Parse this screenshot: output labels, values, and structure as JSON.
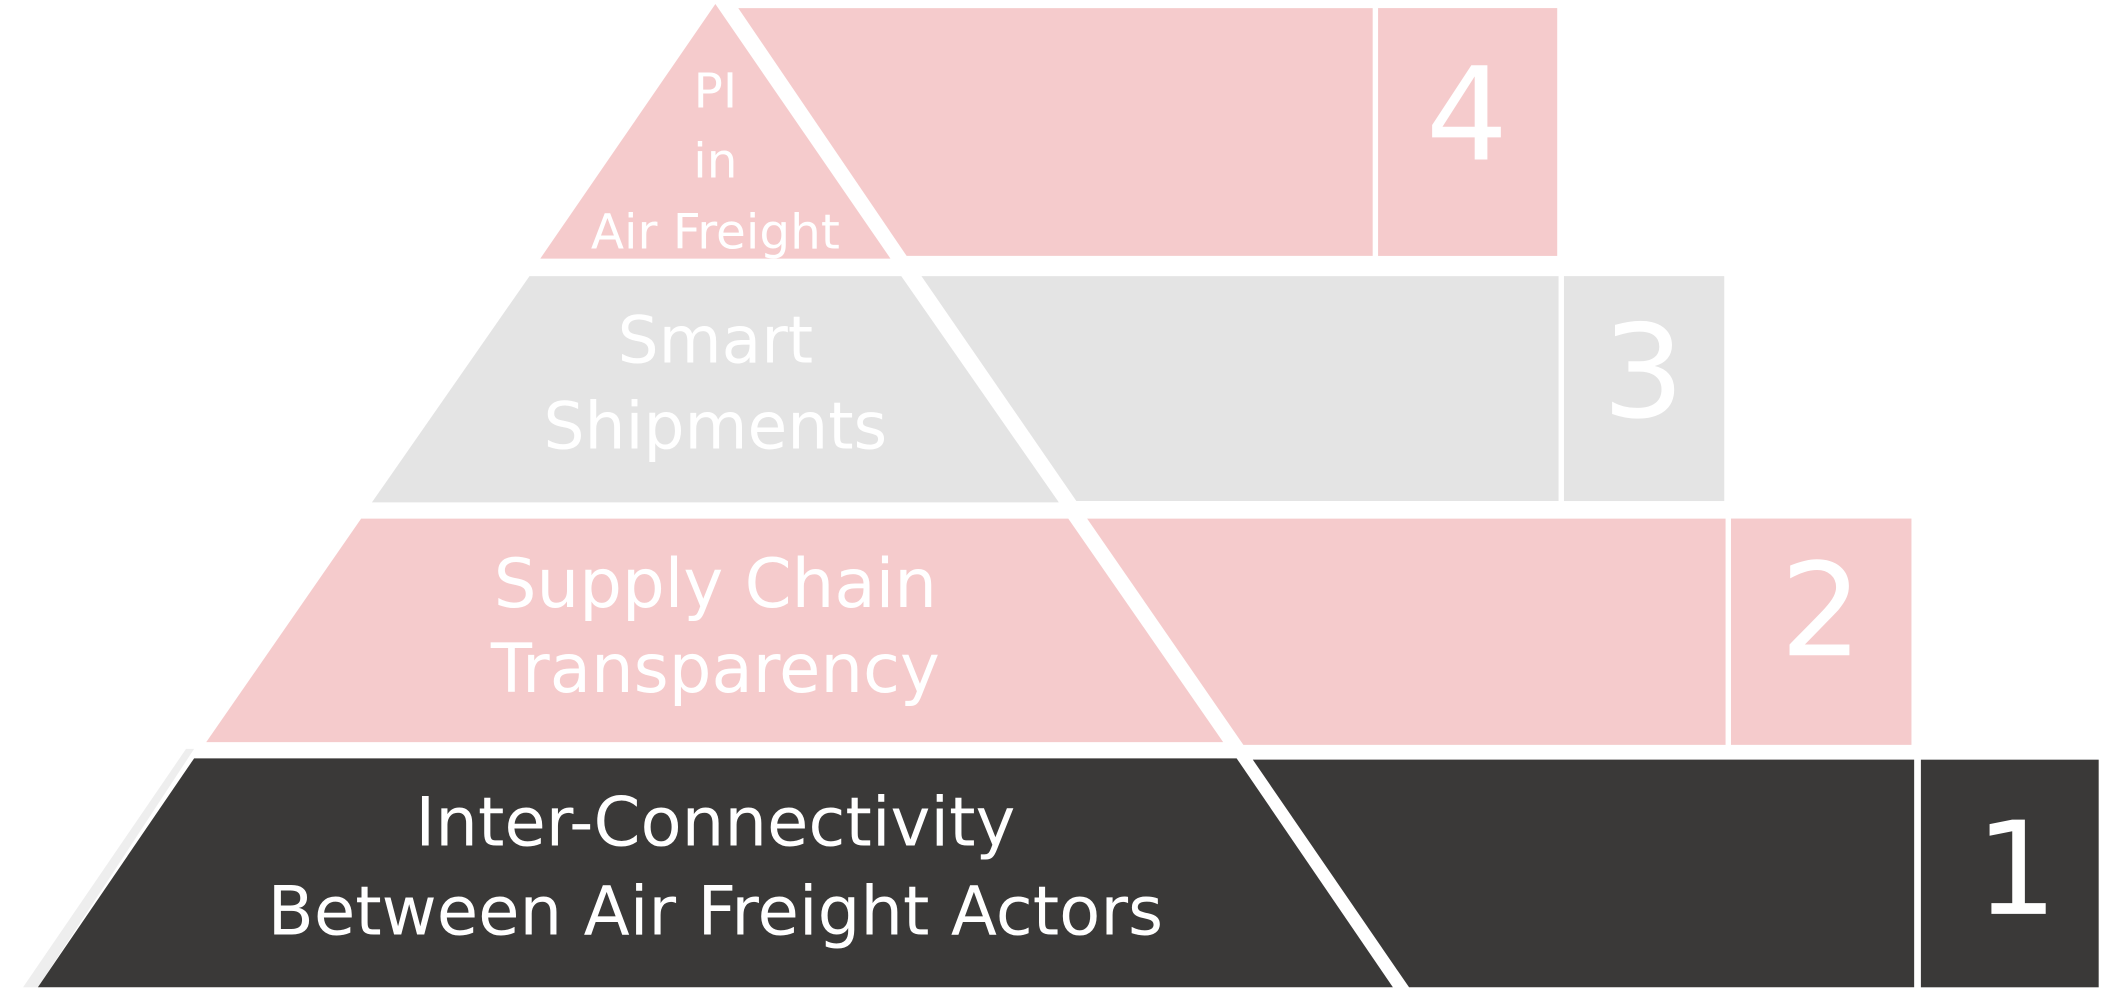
{
  "levels": [
    {
      "label_lines": [
        "PI",
        "in",
        "Air Freight"
      ],
      "number": "4"
    },
    {
      "label_lines": [
        "Smart",
        "Shipments"
      ],
      "number": "3"
    },
    {
      "label_lines": [
        "Supply Chain",
        "Transparency"
      ],
      "number": "2"
    },
    {
      "label_lines": [
        "Inter-Connectivity",
        "Between Air Freight Actors"
      ],
      "number": "1"
    }
  ]
}
